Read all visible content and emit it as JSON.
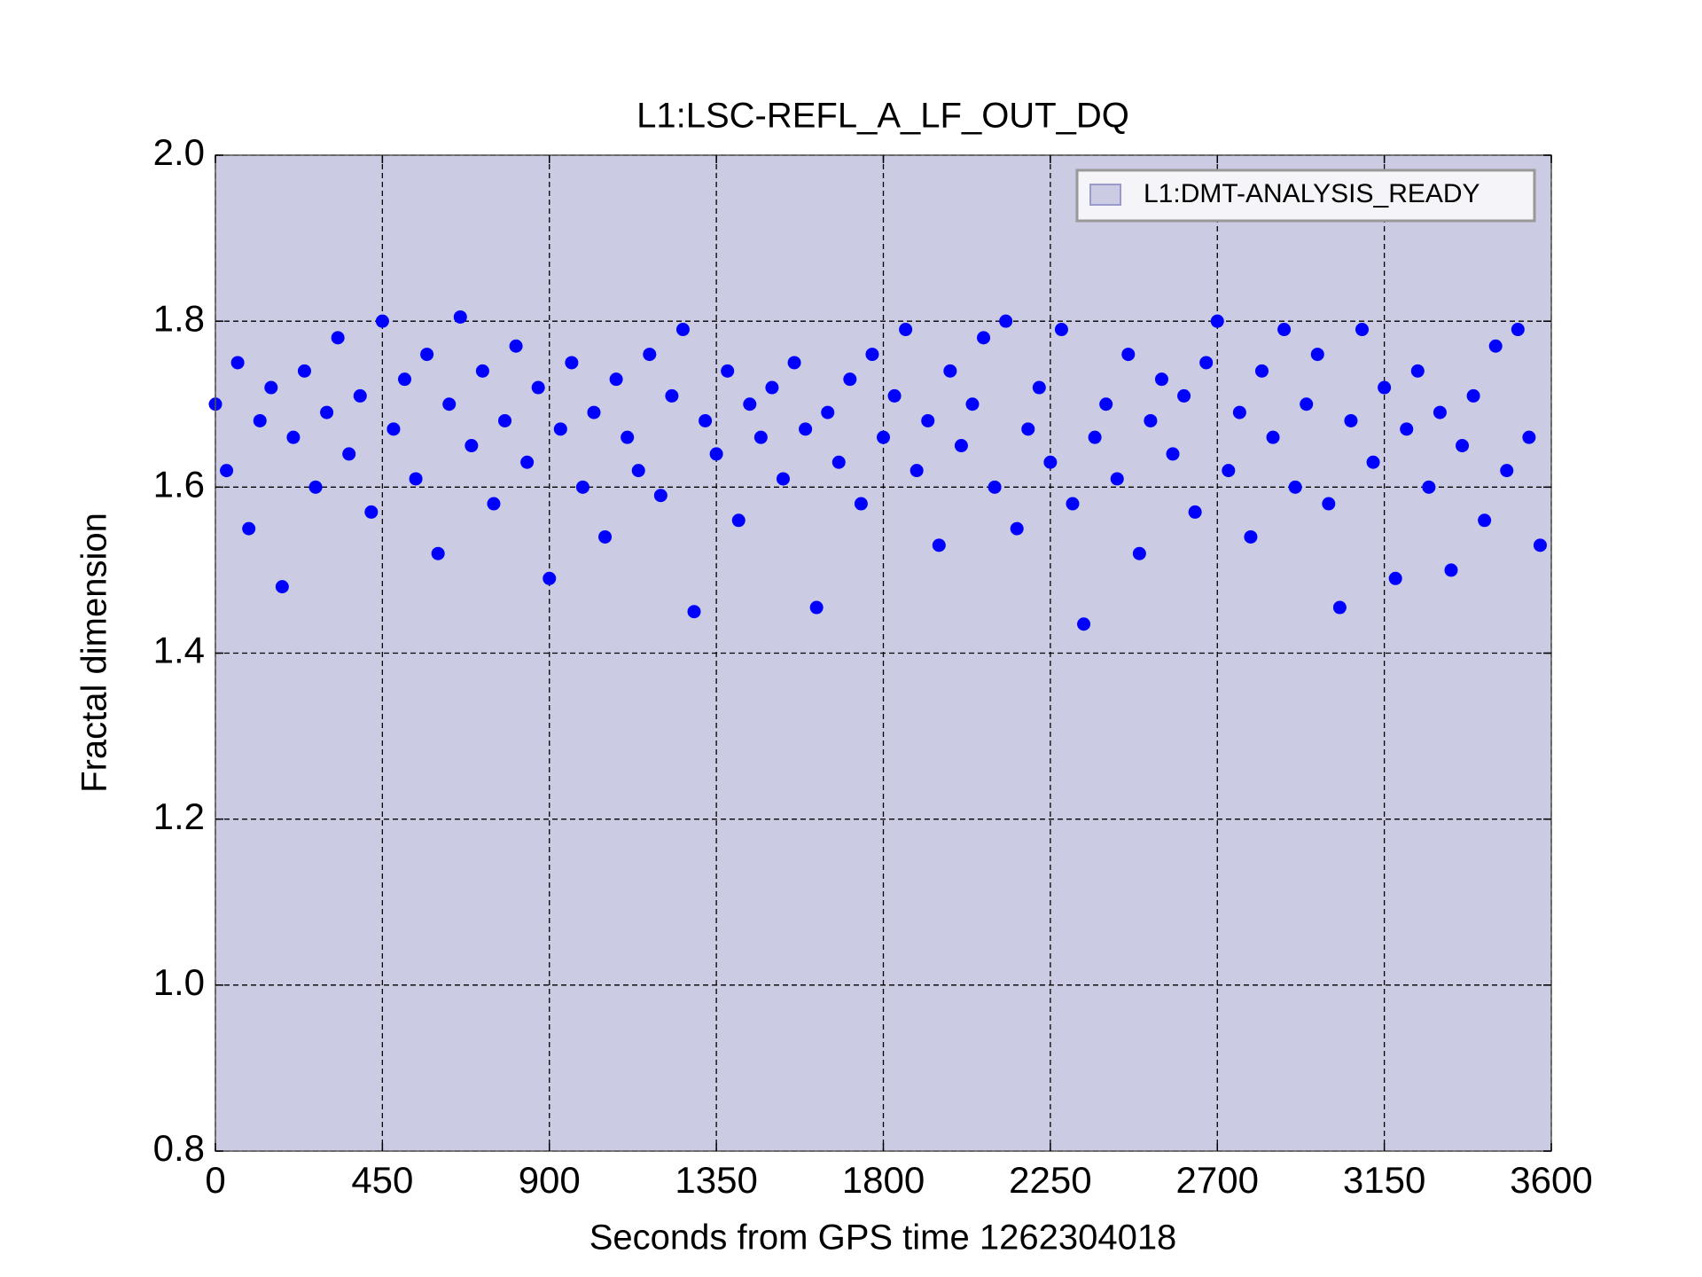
{
  "chart_data": {
    "type": "scatter",
    "title": "L1:LSC-REFL_A_LF_OUT_DQ",
    "xlabel": "Seconds from GPS time 1262304018",
    "ylabel": "Fractal dimension",
    "xlim": [
      0,
      3600
    ],
    "ylim": [
      0.8,
      2.0
    ],
    "xticks": [
      0,
      450,
      900,
      1350,
      1800,
      2250,
      2700,
      3150,
      3600
    ],
    "yticks": [
      0.8,
      {
        "value": 1,
        "label": "1.0"
      },
      1.2,
      1.4,
      1.6,
      1.8,
      {
        "value": 2,
        "label": "2.0"
      }
    ],
    "grid": true,
    "legend": "upper right",
    "spans": [
      {
        "name": "L1:DMT-ANALYSIS_READY",
        "start": 0,
        "end": 3600,
        "color": "#cbcbe4"
      }
    ],
    "series": [
      {
        "color": "#0000ff",
        "x": [
          0,
          30,
          60,
          90,
          120,
          150,
          180,
          210,
          240,
          270,
          300,
          330,
          360,
          390,
          420,
          450,
          480,
          510,
          540,
          570,
          600,
          630,
          660,
          690,
          720,
          750,
          780,
          810,
          840,
          870,
          900,
          930,
          960,
          990,
          1020,
          1050,
          1080,
          1110,
          1140,
          1170,
          1200,
          1230,
          1260,
          1290,
          1320,
          1350,
          1380,
          1410,
          1440,
          1470,
          1500,
          1530,
          1560,
          1590,
          1620,
          1650,
          1680,
          1710,
          1740,
          1770,
          1800,
          1830,
          1860,
          1890,
          1920,
          1950,
          1980,
          2010,
          2040,
          2070,
          2100,
          2130,
          2160,
          2190,
          2220,
          2250,
          2280,
          2310,
          2340,
          2370,
          2400,
          2430,
          2460,
          2490,
          2520,
          2550,
          2580,
          2610,
          2640,
          2670,
          2700,
          2730,
          2760,
          2790,
          2820,
          2850,
          2880,
          2910,
          2940,
          2970,
          3000,
          3030,
          3060,
          3090,
          3120,
          3150,
          3180,
          3210,
          3240,
          3270,
          3300,
          3330,
          3360,
          3390,
          3420,
          3450,
          3480,
          3510,
          3540,
          3570
        ],
        "values": [
          1.7,
          1.62,
          1.75,
          1.55,
          1.68,
          1.72,
          1.48,
          1.66,
          1.74,
          1.6,
          1.69,
          1.78,
          1.64,
          1.71,
          1.57,
          1.8,
          1.67,
          1.73,
          1.61,
          1.76,
          1.52,
          1.7,
          1.805,
          1.65,
          1.74,
          1.58,
          1.68,
          1.77,
          1.63,
          1.72,
          1.49,
          1.67,
          1.75,
          1.6,
          1.69,
          1.54,
          1.73,
          1.66,
          1.62,
          1.76,
          1.59,
          1.71,
          1.79,
          1.45,
          1.68,
          1.64,
          1.74,
          1.56,
          1.7,
          1.66,
          1.72,
          1.61,
          1.75,
          1.67,
          1.455,
          1.69,
          1.63,
          1.73,
          1.58,
          1.76,
          1.66,
          1.71,
          1.79,
          1.62,
          1.68,
          1.53,
          1.74,
          1.65,
          1.7,
          1.78,
          1.6,
          1.8,
          1.55,
          1.67,
          1.72,
          1.63,
          1.79,
          1.58,
          1.435,
          1.66,
          1.7,
          1.61,
          1.76,
          1.52,
          1.68,
          1.73,
          1.64,
          1.71,
          1.57,
          1.75,
          1.8,
          1.62,
          1.69,
          1.54,
          1.74,
          1.66,
          1.79,
          1.6,
          1.7,
          1.76,
          1.58,
          1.455,
          1.68,
          1.79,
          1.63,
          1.72,
          1.49,
          1.67,
          1.74,
          1.6,
          1.69,
          1.5,
          1.65,
          1.71,
          1.56,
          1.77,
          1.62,
          1.79,
          1.66,
          1.53
        ]
      }
    ]
  }
}
